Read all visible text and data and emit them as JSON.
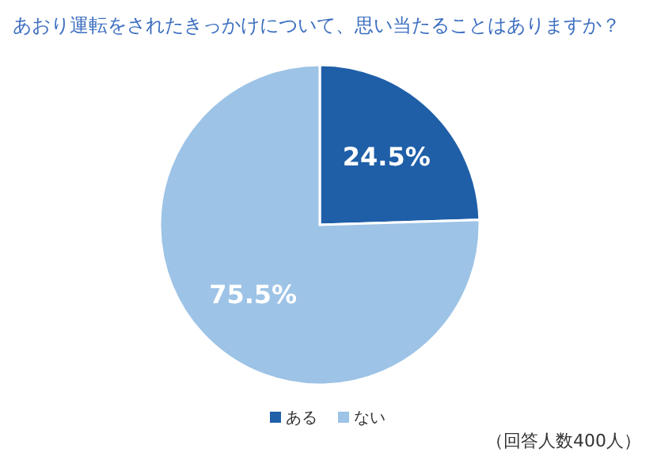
{
  "chart_data": {
    "type": "pie",
    "title": "あおり運転をされたきっかけについて、思い当たることはありますか？",
    "categories": [
      "ある",
      "ない"
    ],
    "values": [
      24.5,
      75.5
    ],
    "value_labels": [
      "24.5%",
      "75.5%"
    ],
    "colors": [
      "#1f5fa8",
      "#9dc3e6"
    ],
    "legend": "bottom",
    "annotations": [
      "（回答人数400人）"
    ]
  }
}
